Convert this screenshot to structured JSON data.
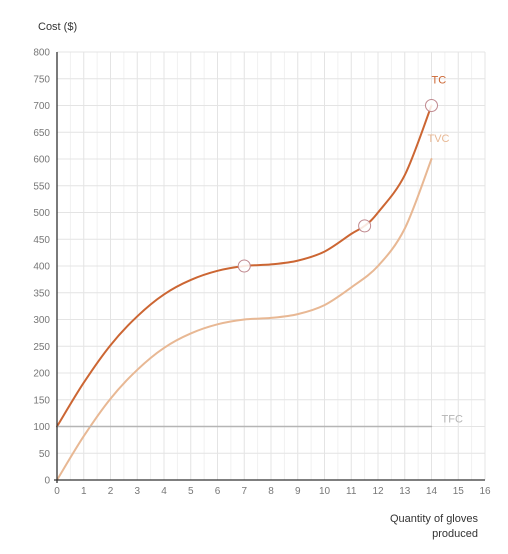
{
  "chart_data": {
    "type": "line",
    "ylabel": "Cost ($)",
    "xlabel": "Quantity of gloves produced",
    "xlim": [
      0,
      16
    ],
    "ylim": [
      0,
      800
    ],
    "x_ticks": [
      "0",
      "1",
      "2",
      "3",
      "4",
      "5",
      "6",
      "7",
      "8",
      "9",
      "10",
      "11",
      "12",
      "13",
      "14",
      "15",
      "16"
    ],
    "y_ticks": [
      "0",
      "50",
      "100",
      "150",
      "200",
      "250",
      "300",
      "350",
      "400",
      "450",
      "500",
      "550",
      "600",
      "650",
      "700",
      "750",
      "800"
    ],
    "grid": true,
    "series": [
      {
        "name": "TC",
        "color": "#cc6633",
        "points": [
          [
            0,
            100
          ],
          [
            1,
            182
          ],
          [
            2,
            252
          ],
          [
            3,
            306
          ],
          [
            4,
            347
          ],
          [
            5,
            374
          ],
          [
            6,
            391
          ],
          [
            7,
            400
          ],
          [
            8,
            403
          ],
          [
            9,
            410
          ],
          [
            10,
            427
          ],
          [
            11,
            460
          ],
          [
            11.5,
            475
          ],
          [
            12,
            500
          ],
          [
            13,
            570
          ],
          [
            14,
            700
          ]
        ],
        "markers": [
          [
            7,
            400
          ],
          [
            11.5,
            475
          ],
          [
            14,
            700
          ]
        ]
      },
      {
        "name": "TVC",
        "color": "#e8b894",
        "points": [
          [
            0,
            0
          ],
          [
            1,
            82
          ],
          [
            2,
            152
          ],
          [
            3,
            206
          ],
          [
            4,
            247
          ],
          [
            5,
            274
          ],
          [
            6,
            291
          ],
          [
            7,
            300
          ],
          [
            8,
            303
          ],
          [
            9,
            310
          ],
          [
            10,
            327
          ],
          [
            11,
            360
          ],
          [
            12,
            400
          ],
          [
            13,
            470
          ],
          [
            14,
            600
          ]
        ]
      },
      {
        "name": "TFC",
        "color": "#b5b5b5",
        "points": [
          [
            0,
            100
          ],
          [
            14,
            100
          ]
        ]
      }
    ]
  }
}
